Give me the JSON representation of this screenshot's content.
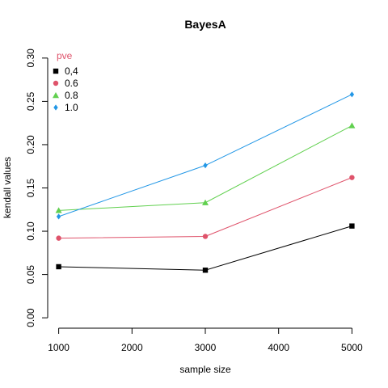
{
  "chart_data": {
    "type": "line",
    "title": "BayesA",
    "xlabel": "sample size",
    "ylabel": "kendall values",
    "x": [
      1000,
      3000,
      5000
    ],
    "xlim": [
      1000,
      5000
    ],
    "ylim": [
      0.0,
      0.3
    ],
    "xticks": [
      "1000",
      "2000",
      "3000",
      "4000",
      "5000"
    ],
    "yticks": [
      "0.00",
      "0.05",
      "0.10",
      "0.15",
      "0.20",
      "0.25",
      "0.30"
    ],
    "grid": false,
    "legend": {
      "title": "pve",
      "title_color": "#DF536B",
      "placement": "top-left"
    },
    "series": [
      {
        "name": "0,4",
        "values": [
          0.059,
          0.055,
          0.106
        ],
        "color": "#000000",
        "marker": "square"
      },
      {
        "name": "0.6",
        "values": [
          0.092,
          0.094,
          0.162
        ],
        "color": "#DF536B",
        "marker": "circle"
      },
      {
        "name": "0.8",
        "values": [
          0.124,
          0.133,
          0.222
        ],
        "color": "#61D04F",
        "marker": "triangle"
      },
      {
        "name": "1.0",
        "values": [
          0.117,
          0.176,
          0.258
        ],
        "color": "#2297E6",
        "marker": "diamond"
      }
    ]
  }
}
